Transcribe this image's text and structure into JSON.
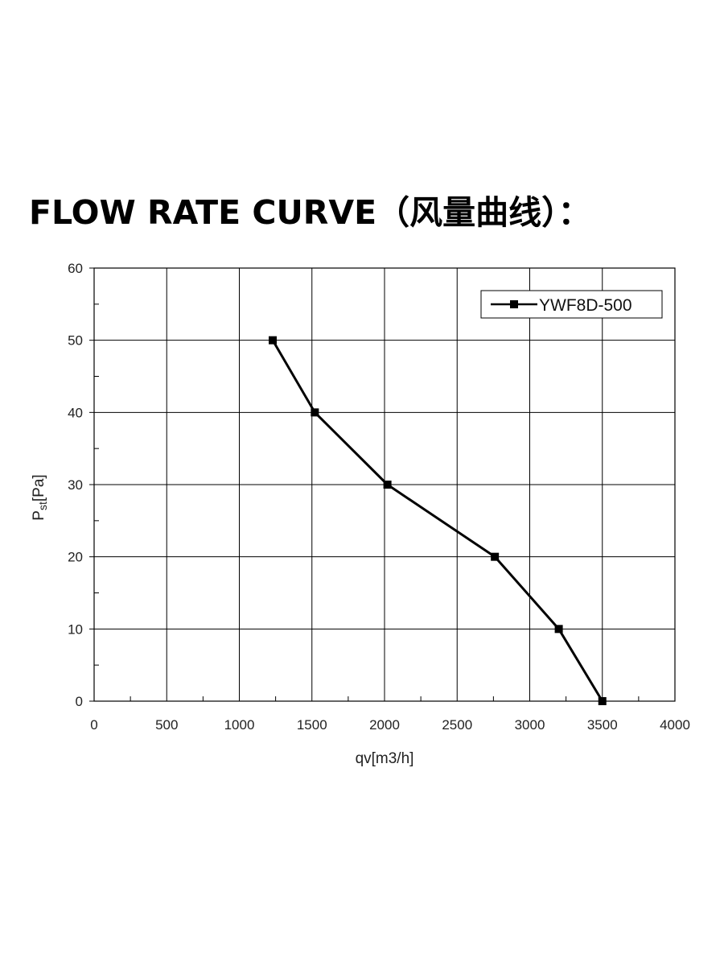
{
  "title": "FLOW RATE CURVE（风量曲线）：",
  "chart_data": {
    "type": "line",
    "title": "FLOW RATE CURVE（风量曲线）：",
    "xlabel": "qv[m3/h]",
    "ylabel": "Pst[Pa]",
    "ylabel_main": "P",
    "ylabel_sub": "st",
    "ylabel_unit": "[Pa]",
    "xlim": [
      0,
      4000
    ],
    "ylim": [
      0,
      60
    ],
    "x_ticks": [
      0,
      500,
      1000,
      1500,
      2000,
      2500,
      3000,
      3500,
      4000
    ],
    "y_ticks": [
      0,
      10,
      20,
      30,
      40,
      50,
      60
    ],
    "grid": true,
    "legend_position": "top-right",
    "series": [
      {
        "name": "YWF8D-500",
        "color": "#000000",
        "marker": "square",
        "x": [
          1230,
          1520,
          2020,
          2760,
          3200,
          3500
        ],
        "y": [
          50,
          40,
          30,
          20,
          10,
          0
        ]
      }
    ]
  }
}
